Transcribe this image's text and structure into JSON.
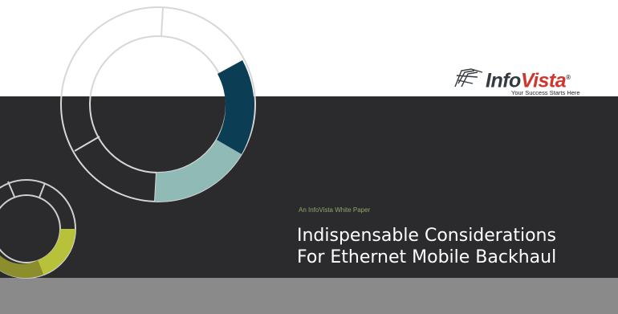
{
  "brand": {
    "name_part1": "Info",
    "name_part2": "Vista",
    "registered": "®",
    "tagline": "Your Success Starts Here"
  },
  "cover": {
    "kicker": "An InfoVista White Paper",
    "title_line1": "Indispensable Considerations",
    "title_line2": "For Ethernet Mobile Backhaul"
  },
  "colors": {
    "dark_band": "#2b2a2c",
    "grey_band": "#8a8a8a",
    "ring_navy": "#0b3e55",
    "ring_teal": "#8fbab5",
    "ring_lime": "#b7c23a",
    "ring_olive": "#8c8d2c",
    "brand_red": "#d0352e"
  }
}
